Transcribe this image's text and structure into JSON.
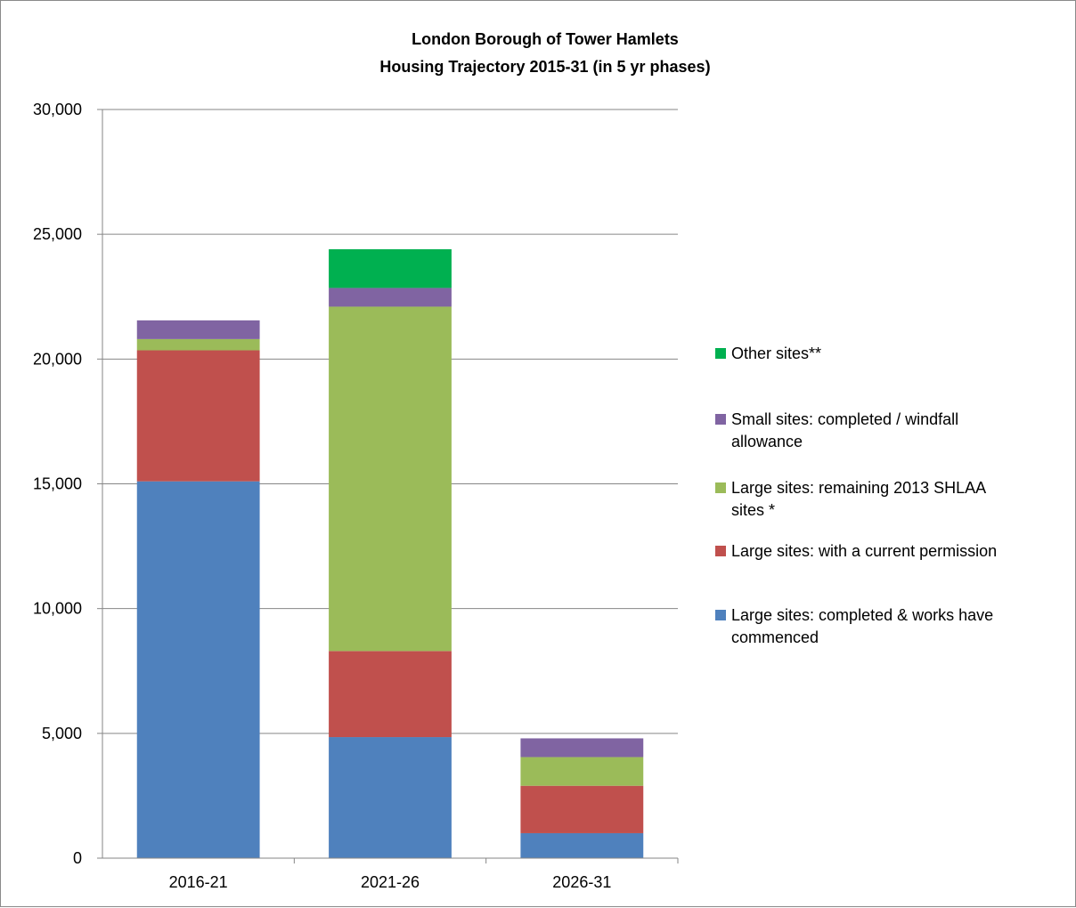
{
  "chart_data": {
    "type": "bar",
    "stacked": true,
    "title": "London Borough of Tower Hamlets",
    "subtitle": "Housing Trajectory 2015-31 (in 5 yr phases)",
    "xlabel": "",
    "ylabel": "",
    "ylim": [
      0,
      30000
    ],
    "yticks": [
      0,
      5000,
      10000,
      15000,
      20000,
      25000,
      30000
    ],
    "ytick_labels": [
      "0",
      "5,000",
      "10,000",
      "15,000",
      "20,000",
      "25,000",
      "30,000"
    ],
    "grid": true,
    "legend_position": "right",
    "categories": [
      "2016-21",
      "2021-26",
      "2026-31"
    ],
    "series": [
      {
        "name": "Large sites:  completed & works have commenced",
        "color": "#4F81BD",
        "values": [
          15100,
          4850,
          1000
        ]
      },
      {
        "name": "Large sites:  with a current permission",
        "color": "#C0504D",
        "values": [
          5250,
          3450,
          1900
        ]
      },
      {
        "name": "Large sites:  remaining 2013 SHLAA sites *",
        "color": "#9BBB59",
        "values": [
          450,
          13800,
          1150
        ]
      },
      {
        "name": "Small sites:  completed / windfall allowance",
        "color": "#8064A2",
        "values": [
          750,
          750,
          750
        ]
      },
      {
        "name": "Other sites**",
        "color": "#00B050",
        "values": [
          0,
          1550,
          0
        ]
      }
    ],
    "legend": [
      {
        "series": 4,
        "lines": [
          "Other sites**"
        ]
      },
      {
        "series": 3,
        "lines": [
          "Small sites:  completed / windfall",
          "allowance"
        ]
      },
      {
        "series": 2,
        "lines": [
          "Large sites:  remaining 2013 SHLAA",
          "sites *"
        ]
      },
      {
        "series": 1,
        "lines": [
          "Large sites:  with a current permission"
        ]
      },
      {
        "series": 0,
        "lines": [
          "Large sites:  completed & works have",
          "commenced"
        ]
      }
    ]
  }
}
